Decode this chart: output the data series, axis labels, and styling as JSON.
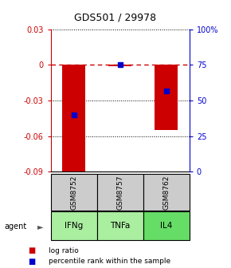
{
  "title": "GDS501 / 29978",
  "categories": [
    "IFNg",
    "TNFa",
    "IL4"
  ],
  "sample_labels": [
    "GSM8752",
    "GSM8757",
    "GSM8762"
  ],
  "log_ratios": [
    -0.092,
    -0.001,
    -0.055
  ],
  "percentile_ranks": [
    0.4,
    0.75,
    0.57
  ],
  "ylim_left": [
    -0.09,
    0.03
  ],
  "ylim_right": [
    0,
    100
  ],
  "yticks_left": [
    0.03,
    0,
    -0.03,
    -0.06,
    -0.09
  ],
  "ytick_labels_left": [
    "0.03",
    "0",
    "-0.03",
    "-0.06",
    "-0.09"
  ],
  "yticks_right": [
    100,
    75,
    50,
    25,
    0
  ],
  "bar_color": "#cc0000",
  "dot_color": "#0000cc",
  "zero_line_color": "#cc0000",
  "grid_color": "#000000",
  "sample_box_color": "#cccccc",
  "agent_box_color": "#aaeea0",
  "agent_box_color_il4": "#66dd66",
  "background_color": "#ffffff",
  "bar_width": 0.5,
  "legend_items": [
    "log ratio",
    "percentile rank within the sample"
  ]
}
